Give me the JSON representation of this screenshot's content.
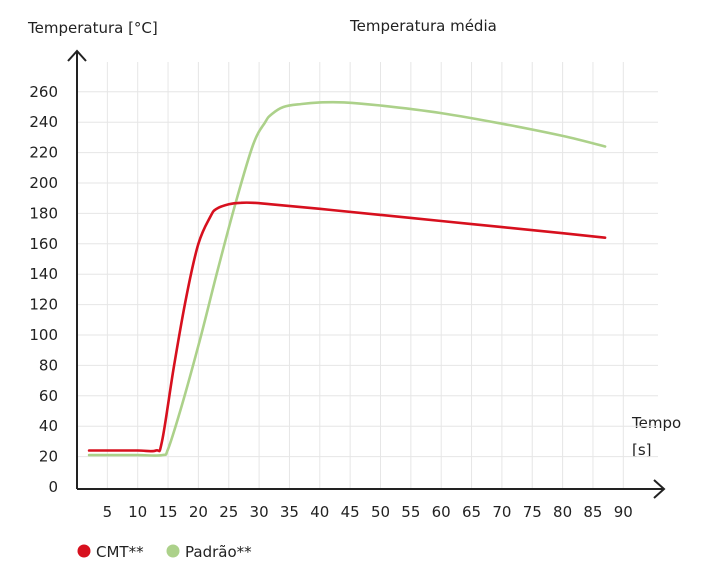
{
  "chart_data": {
    "type": "line",
    "title": "Temperatura média",
    "ylabel": "Temperatura [°C]",
    "xlabel_line1": "Tempo",
    "xlabel_line2": "[s]",
    "xlim": [
      0,
      92
    ],
    "ylim": [
      0,
      270
    ],
    "xticks": [
      5,
      10,
      15,
      20,
      25,
      30,
      35,
      40,
      45,
      50,
      55,
      60,
      65,
      70,
      75,
      80,
      85,
      90
    ],
    "yticks": [
      0,
      20,
      40,
      60,
      80,
      100,
      120,
      140,
      160,
      180,
      200,
      220,
      240,
      260
    ],
    "grid": true,
    "legend_position": "bottom-left",
    "series": [
      {
        "name": "CMT**",
        "color": "#d7101e",
        "x": [
          2,
          5,
          10,
          13,
          14,
          16,
          18,
          20,
          22,
          23,
          25,
          27,
          29,
          32,
          40,
          50,
          60,
          70,
          80,
          87
        ],
        "y": [
          24,
          24,
          24,
          24,
          30,
          80,
          125,
          160,
          178,
          183,
          186,
          187,
          187,
          186,
          183,
          179,
          175,
          171,
          167,
          164
        ]
      },
      {
        "name": "Padrão**",
        "color": "#acd18a",
        "x": [
          2,
          5,
          10,
          14,
          15,
          17,
          20,
          23,
          26,
          29,
          31,
          32,
          34,
          37,
          40,
          44,
          50,
          60,
          70,
          80,
          87
        ],
        "y": [
          21,
          21,
          21,
          21,
          25,
          50,
          93,
          140,
          185,
          225,
          240,
          245,
          250,
          252,
          253,
          253,
          251,
          246,
          239,
          231,
          224
        ]
      }
    ]
  }
}
